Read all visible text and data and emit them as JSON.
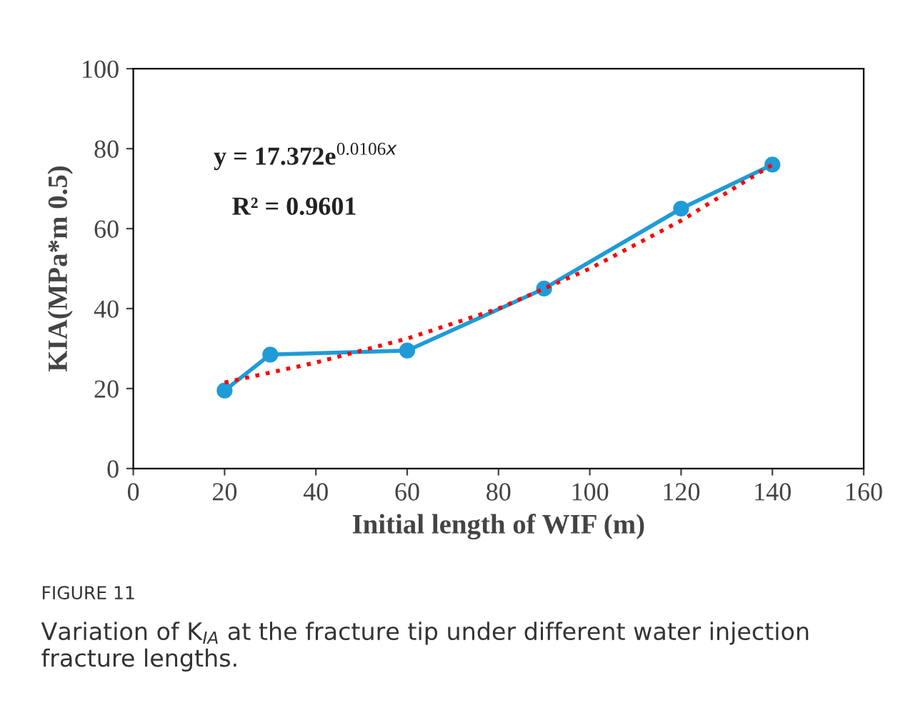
{
  "chart_data": {
    "type": "line",
    "xlabel": "Initial length of WIF (m)",
    "ylabel": "KIA(MPa*m 0.5)",
    "xlim": [
      0,
      160
    ],
    "xticks": [
      0,
      20,
      40,
      60,
      80,
      100,
      120,
      140,
      160
    ],
    "ylim": [
      0,
      100
    ],
    "yticks": [
      0,
      20,
      40,
      60,
      80,
      100
    ],
    "grid": false,
    "legend": false,
    "series": [
      {
        "color": "#1f9bd7",
        "marker": "circle",
        "line_style": "solid",
        "x": [
          20,
          30,
          60,
          90,
          120,
          140
        ],
        "values": [
          19.5,
          28.5,
          29.5,
          45,
          65,
          76
        ]
      },
      {
        "type": "line",
        "color": "#ff0000",
        "marker": "none",
        "line_style": "dotted",
        "x": [
          20,
          40,
          60,
          80,
          100,
          120,
          140
        ],
        "values": [
          21.5,
          26.5,
          32.5,
          40,
          50,
          62,
          76
        ]
      }
    ],
    "annotations": [
      "y = 17.372e$^{0.0106x}$",
      "R² = 0.9601",
      "FIGURE 11",
      "Variation of K$_{IA}$ at the fracture tip under different water injection fracture lengths."
    ]
  }
}
